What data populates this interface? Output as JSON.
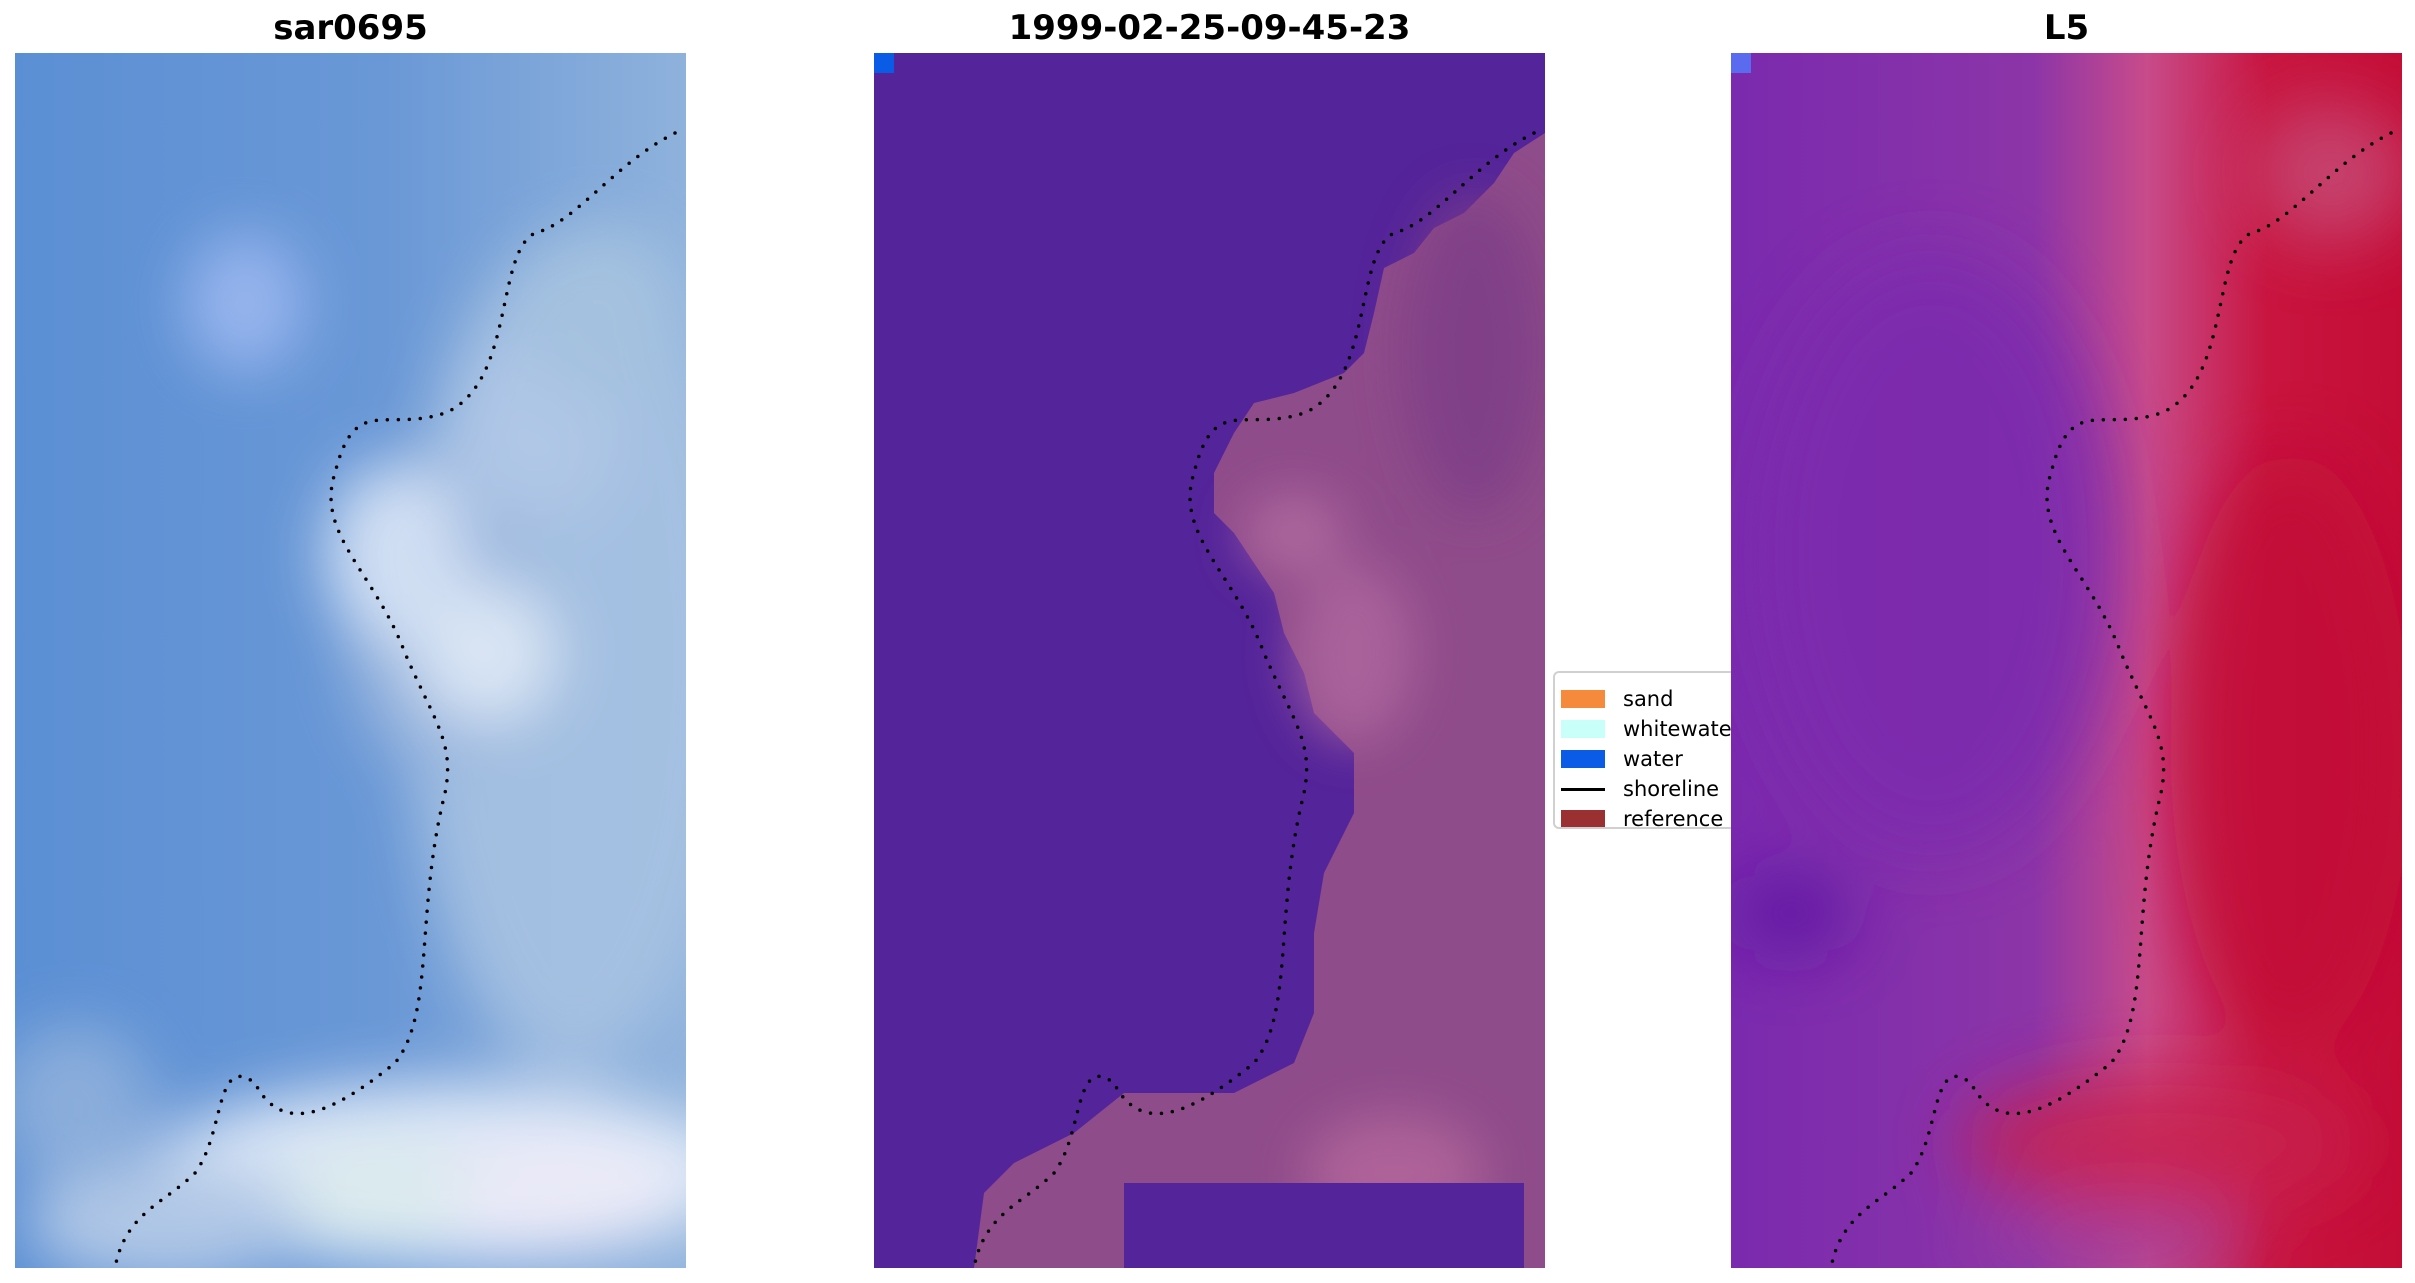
{
  "panels": [
    {
      "title": "sar0695"
    },
    {
      "title": "1999-02-25-09-45-23"
    },
    {
      "title": "L5"
    }
  ],
  "legend": {
    "items": [
      {
        "label": "sand",
        "color": "#f58a3c",
        "kind": "patch"
      },
      {
        "label": "whitewater",
        "color": "#c8fff8",
        "kind": "patch"
      },
      {
        "label": "water",
        "color": "#0a5ce6",
        "kind": "patch"
      },
      {
        "label": "shoreline",
        "color": "#000000",
        "kind": "line"
      },
      {
        "label": "reference shoreline",
        "color": "#9b3033",
        "kind": "patch"
      }
    ]
  },
  "colors": {
    "rgb_water": "#5a8ed2",
    "rgb_land": "#a9c3e0",
    "class_water": "#54249a",
    "class_land": "#8f4c8a",
    "index_low": "#7a2eae",
    "index_high": "#c8103a"
  }
}
